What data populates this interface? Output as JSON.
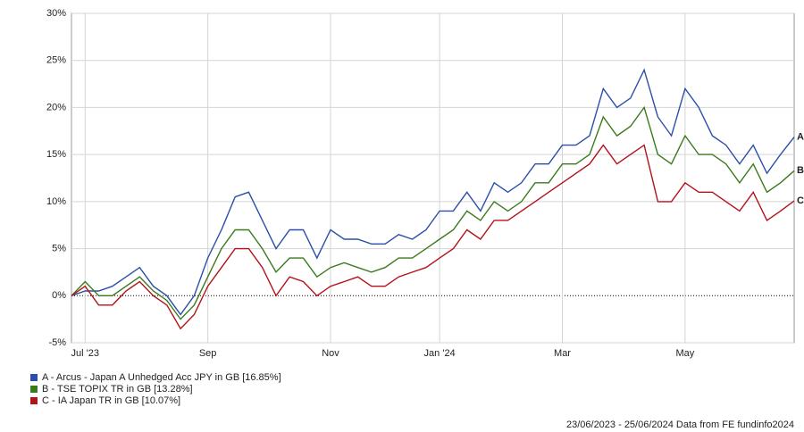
{
  "chart_data": {
    "type": "line",
    "categories": [
      null,
      "Jul '23",
      null,
      null,
      null,
      null,
      null,
      null,
      null,
      null,
      "Sep",
      null,
      null,
      null,
      null,
      null,
      null,
      null,
      null,
      "Nov",
      null,
      null,
      null,
      null,
      null,
      null,
      null,
      "Jan '24",
      null,
      null,
      null,
      null,
      null,
      null,
      null,
      null,
      "Mar",
      null,
      null,
      null,
      null,
      null,
      null,
      null,
      null,
      "May",
      null,
      null,
      null,
      null,
      null,
      null,
      null,
      null
    ],
    "series": [
      {
        "name": "A - Arcus - Japan A Unhedged Acc JPY in GB [16.85%]",
        "label": "A",
        "color": "#2b4fa8",
        "values": [
          0,
          0.5,
          0.5,
          1,
          2,
          3,
          1,
          0,
          -2,
          0,
          4,
          7,
          10.5,
          11,
          8,
          5,
          7,
          7,
          4,
          7,
          6,
          6,
          5.5,
          5.5,
          6.5,
          6,
          7,
          9,
          9,
          11,
          9,
          12,
          11,
          12,
          14,
          14,
          16,
          16,
          17,
          22,
          20,
          21,
          24,
          19,
          17,
          22,
          20,
          17,
          16,
          14,
          16,
          13,
          15,
          16.85
        ]
      },
      {
        "name": "B - TSE TOPIX TR in GB [13.28%]",
        "label": "B",
        "color": "#3b7a1c",
        "values": [
          0,
          1.5,
          0,
          0,
          1,
          2,
          0.5,
          -0.5,
          -2.5,
          -1,
          2,
          5,
          7,
          7,
          5,
          2.5,
          4,
          4,
          2,
          3,
          3.5,
          3,
          2.5,
          3,
          4,
          4,
          5,
          6,
          7,
          9,
          8,
          10,
          9,
          10,
          12,
          12,
          14,
          14,
          15,
          19,
          17,
          18,
          20,
          15,
          14,
          17,
          15,
          15,
          14,
          12,
          14,
          11,
          12,
          13.28
        ]
      },
      {
        "name": "C - IA Japan TR in GB [10.07%]",
        "label": "C",
        "color": "#b3121a",
        "values": [
          0,
          1,
          -1,
          -1,
          0.5,
          1.5,
          0,
          -1,
          -3.5,
          -2,
          1,
          3,
          5,
          5,
          3,
          0,
          2,
          1.5,
          0,
          1,
          1.5,
          2,
          1,
          1,
          2,
          2.5,
          3,
          4,
          5,
          7,
          6,
          8,
          8,
          9,
          10,
          11,
          12,
          13,
          14,
          16,
          14,
          15,
          16,
          10,
          10,
          12,
          11,
          11,
          10,
          9,
          11,
          8,
          9,
          10.07
        ]
      }
    ],
    "ylim": [
      -5,
      30
    ],
    "yticks": [
      {
        "value": -5,
        "label": "-5%"
      },
      {
        "value": 0,
        "label": "0%"
      },
      {
        "value": 5,
        "label": "5%"
      },
      {
        "value": 10,
        "label": "10%"
      },
      {
        "value": 15,
        "label": "15%"
      },
      {
        "value": 20,
        "label": "20%"
      },
      {
        "value": 25,
        "label": "25%"
      },
      {
        "value": 30,
        "label": "30%"
      }
    ],
    "grid": true,
    "footer": "23/06/2023 - 25/06/2024 Data from FE fundinfo2024"
  }
}
